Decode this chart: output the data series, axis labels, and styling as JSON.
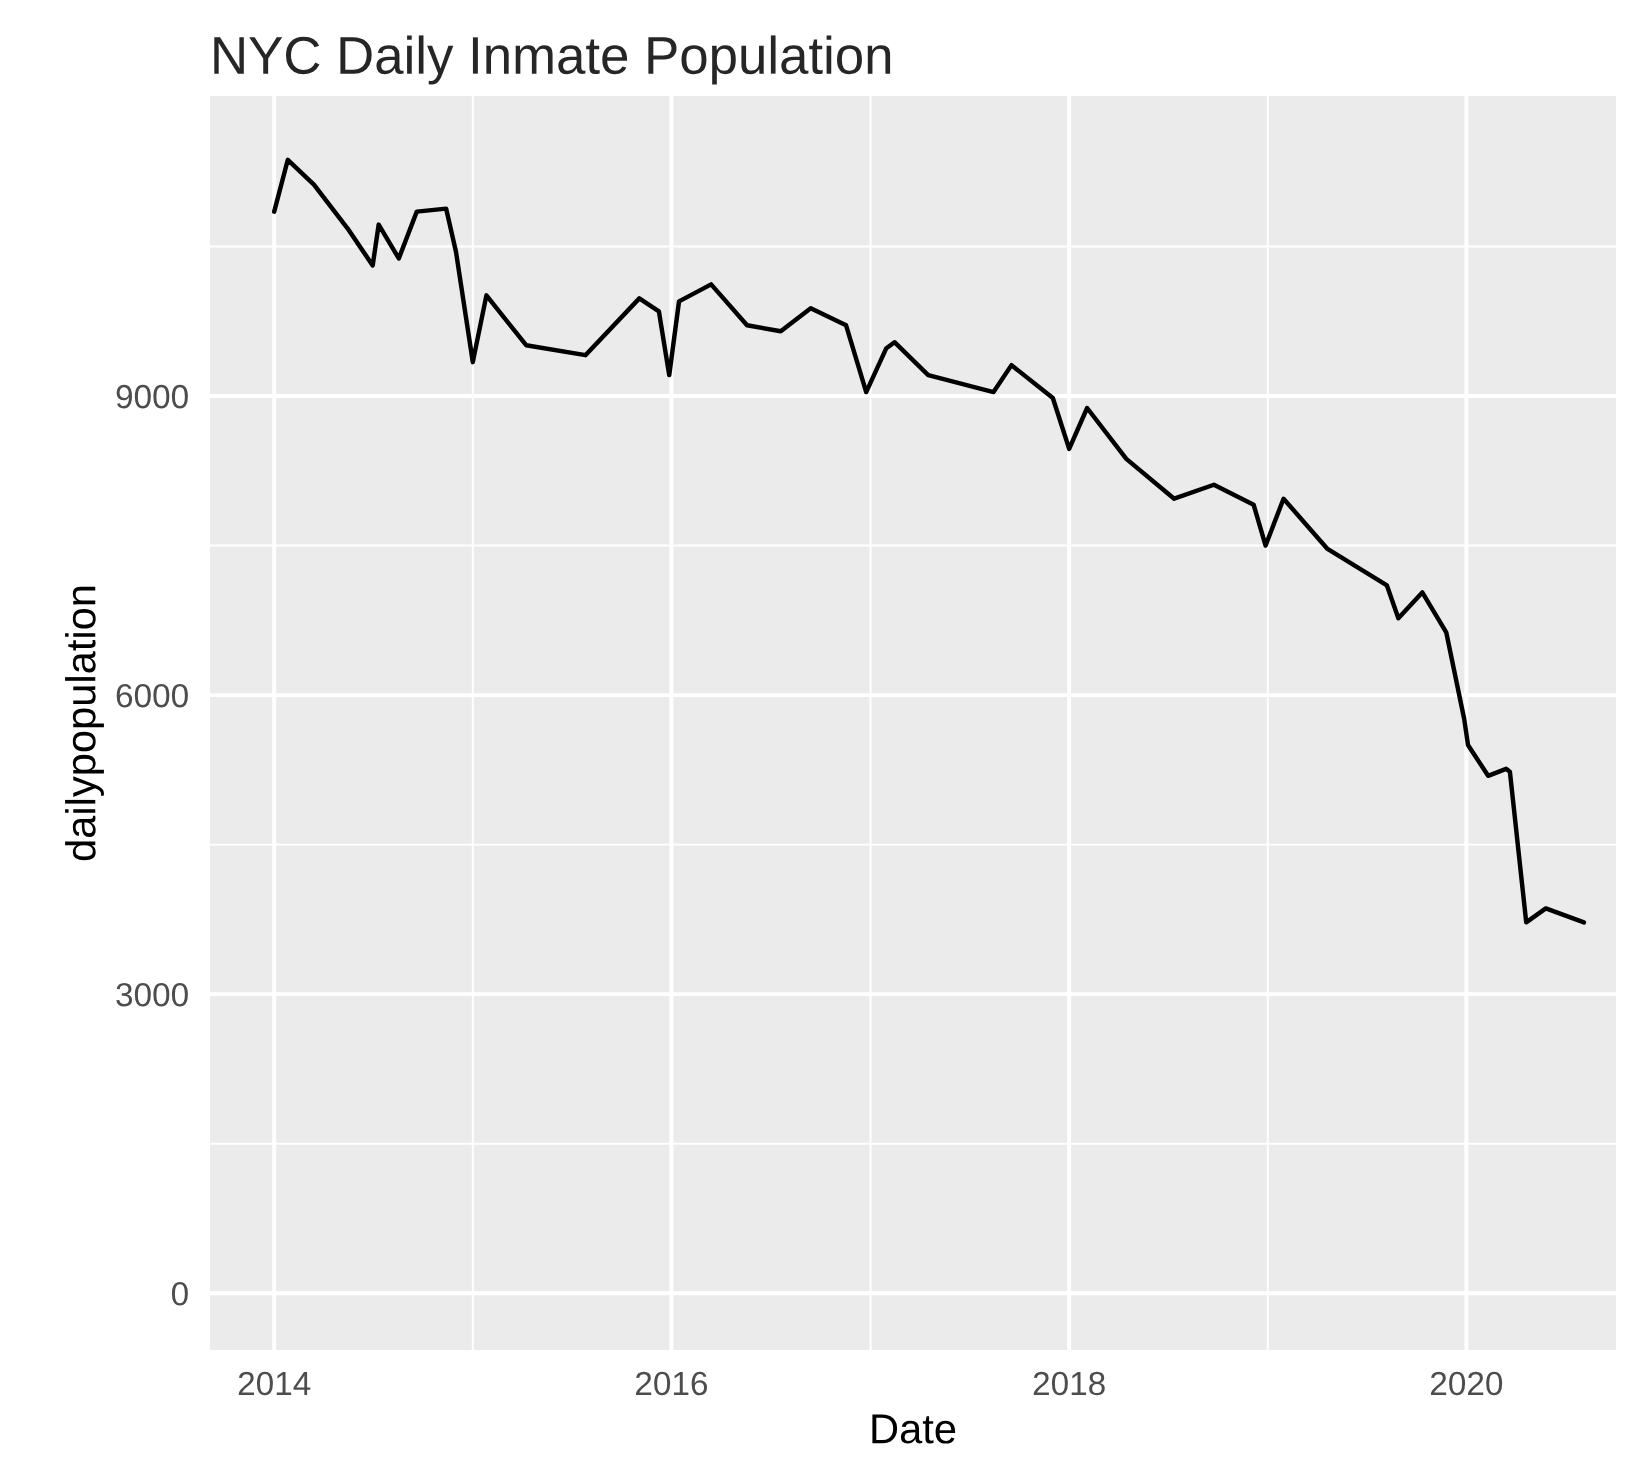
{
  "chart_data": {
    "type": "line",
    "title": "NYC Daily Inmate Population",
    "xlabel": "Date",
    "ylabel": "dailypopulation",
    "x": [
      "2014-01-01",
      "2014-01-26",
      "2014-03-15",
      "2014-05-16",
      "2014-07-01",
      "2014-07-12",
      "2014-08-18",
      "2014-09-20",
      "2014-11-13",
      "2014-12-01",
      "2015-01-01",
      "2015-01-26",
      "2015-04-09",
      "2015-07-27",
      "2015-11-03",
      "2015-12-09",
      "2015-12-28",
      "2016-01-15",
      "2016-03-14",
      "2016-05-19",
      "2016-07-20",
      "2016-09-13",
      "2016-11-17",
      "2016-12-24",
      "2017-01-30",
      "2017-02-14",
      "2017-04-17",
      "2017-08-15",
      "2017-09-17",
      "2017-12-02",
      "2018-01-01",
      "2018-02-03",
      "2018-04-16",
      "2018-07-13",
      "2018-09-24",
      "2018-12-06",
      "2018-12-28",
      "2019-01-30",
      "2019-04-20",
      "2019-08-08",
      "2019-08-29",
      "2019-10-12",
      "2019-11-25",
      "2019-12-28",
      "2020-01-04",
      "2020-02-10",
      "2020-03-14",
      "2020-03-21",
      "2020-04-20",
      "2020-05-26",
      "2020-08-04"
    ],
    "series": [
      {
        "color": "#000000",
        "values": [
          10850,
          11370,
          11120,
          10680,
          10310,
          10720,
          10380,
          10850,
          10880,
          10450,
          9340,
          10010,
          9510,
          9410,
          9980,
          9850,
          9210,
          9950,
          10120,
          9710,
          9650,
          9880,
          9710,
          9040,
          9480,
          9540,
          9210,
          9040,
          9310,
          8980,
          8470,
          8880,
          8370,
          7970,
          8110,
          7910,
          7500,
          7970,
          7470,
          7100,
          6770,
          7030,
          6630,
          5760,
          5500,
          5190,
          5260,
          5230,
          3720,
          3860,
          3720
        ]
      }
    ],
    "xlim": [
      "2013-09-05",
      "2020-10-02"
    ],
    "xticks": [
      {
        "value": "2014-01-01",
        "label": "2014"
      },
      {
        "value": "2015-01-01",
        "label": null
      },
      {
        "value": "2016-01-01",
        "label": "2016"
      },
      {
        "value": "2017-01-01",
        "label": null
      },
      {
        "value": "2018-01-01",
        "label": "2018"
      },
      {
        "value": "2019-01-01",
        "label": null
      },
      {
        "value": "2020-01-01",
        "label": "2020"
      }
    ],
    "ylim": [
      -570,
      12010
    ],
    "yticks": [
      0,
      {
        "value": 1500,
        "label": null
      },
      3000,
      {
        "value": 4500,
        "label": null
      },
      6000,
      {
        "value": 7500,
        "label": null
      },
      9000,
      {
        "value": 10500,
        "label": null
      }
    ],
    "grid": true,
    "legend": false,
    "line_style": "solid",
    "marker": "none"
  }
}
